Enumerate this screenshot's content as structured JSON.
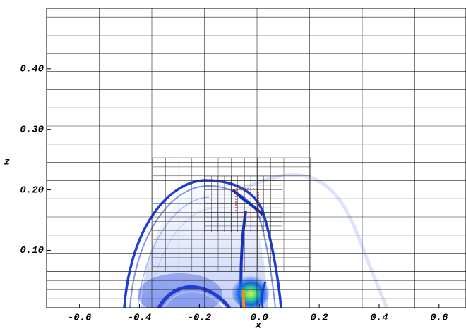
{
  "chart_data": {
    "type": "field",
    "x_label": "x",
    "y_label": "z",
    "xlim": [
      -0.71,
      0.69
    ],
    "ylim": [
      0.005,
      0.5
    ],
    "xticks": [
      -0.6,
      -0.4,
      -0.2,
      {
        "value": 0,
        "label": "0.0"
      },
      0.2,
      0.4,
      0.6
    ],
    "yticks": [
      {
        "value": 0.1,
        "label": "0.10"
      },
      {
        "value": 0.2,
        "label": "0.20"
      },
      {
        "value": 0.3,
        "label": "0.30"
      },
      {
        "value": 0.4,
        "label": "0.40"
      }
    ],
    "grid": true
  }
}
